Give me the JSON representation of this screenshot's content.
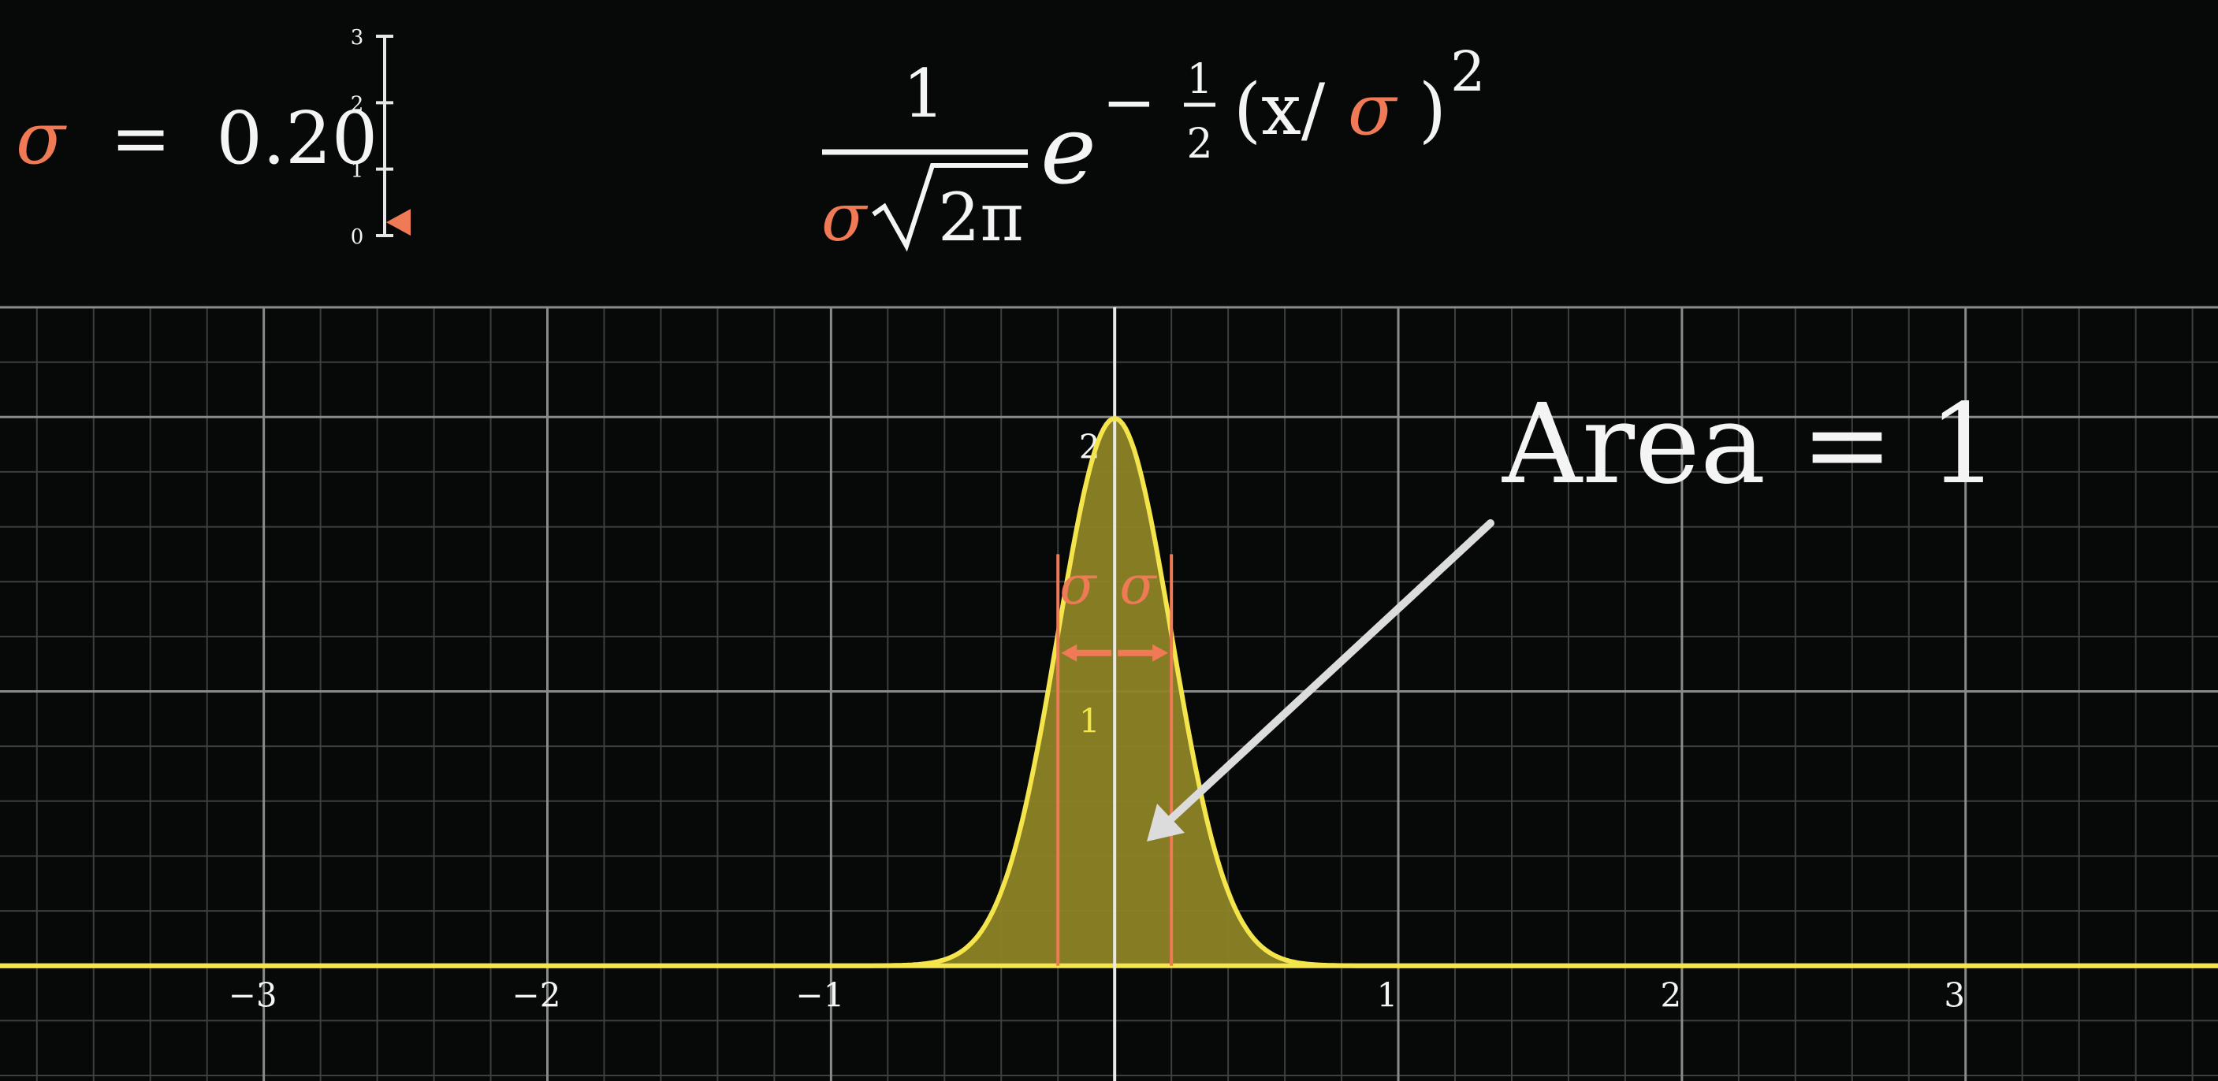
{
  "sigma_readout": {
    "symbol": "σ",
    "equals": "=",
    "value": "0.20",
    "sigma_value": 0.2
  },
  "slider": {
    "ticks": [
      "0",
      "1",
      "2",
      "3"
    ],
    "min": 0,
    "max": 3,
    "value": 0.2
  },
  "formula": {
    "numerator": "1",
    "denominator_sigma": "σ",
    "denominator_rest": "2π",
    "base": "e",
    "exp_minus": "−",
    "exp_half_num": "1",
    "exp_half_den": "2",
    "exp_open": "(x/",
    "exp_sigma": "σ",
    "exp_close": ")",
    "exp_power": "2"
  },
  "annotation": {
    "label": "Area = 1",
    "sigma_left": "σ",
    "sigma_right": "σ"
  },
  "colors": {
    "background": "#070909",
    "curve": "#f3e54b",
    "fill": "#8d8326",
    "sigma_accent": "#f07a55",
    "grid_major": "#8a8a8a",
    "grid_minor": "#3c3e40",
    "text": "#f4f4f4",
    "arrow": "#dcdcdc"
  },
  "chart_data": {
    "type": "line",
    "function": "normal_pdf",
    "mean": 0,
    "sigma": 0.2,
    "xlim": [
      -3.93,
      3.89
    ],
    "ylim": [
      -0.42,
      2.4
    ],
    "x_ticks": [
      -3,
      -2,
      -1,
      1,
      2,
      3
    ],
    "x_tick_labels": [
      "−3",
      "−2",
      "−1",
      "1",
      "2",
      "3"
    ],
    "y_ticks": [
      1,
      2
    ],
    "y_tick_labels": [
      "1",
      "2"
    ],
    "grid": true,
    "sigma_markers": [
      -0.2,
      0.2
    ],
    "shaded_area": 1
  }
}
